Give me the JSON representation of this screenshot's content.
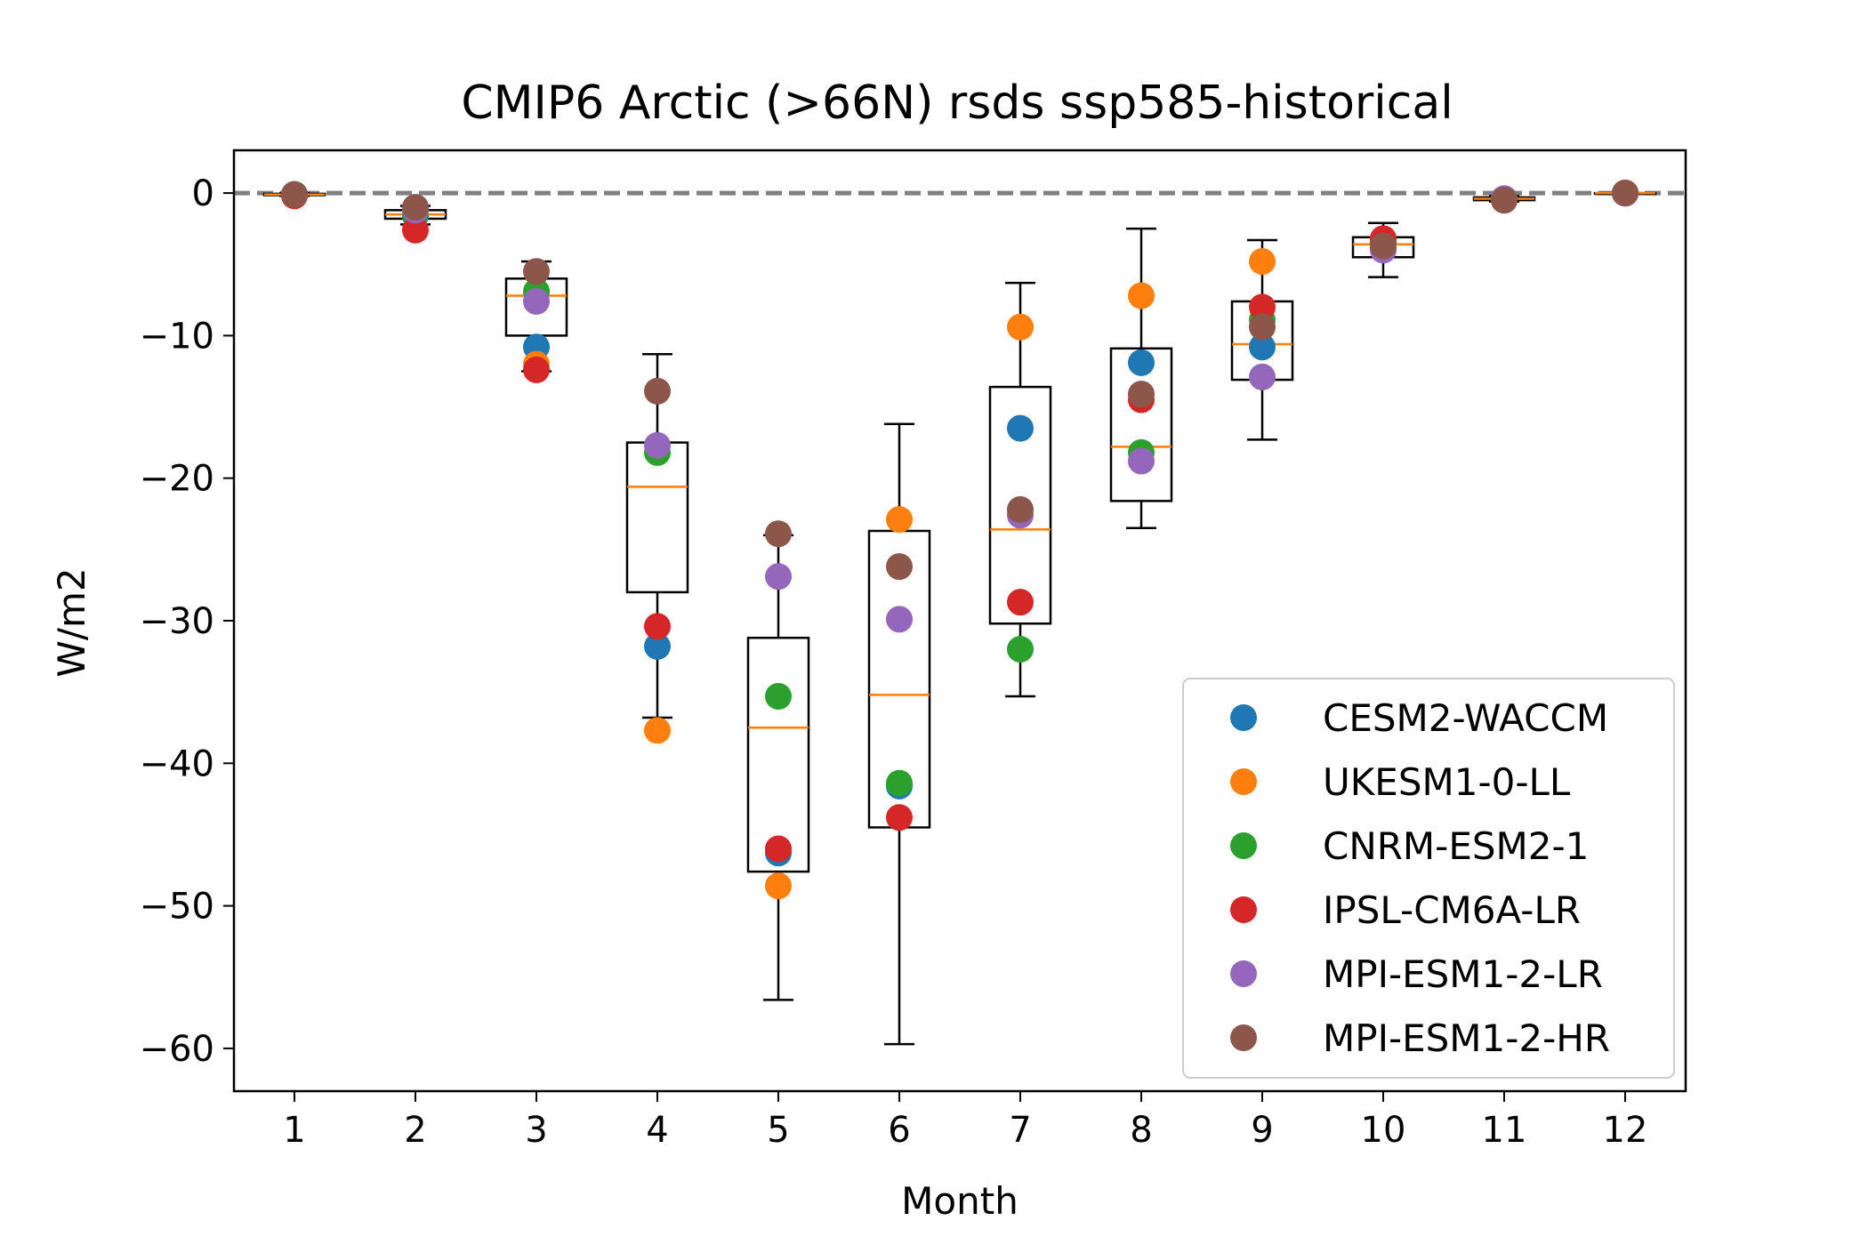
{
  "chart_data": {
    "type": "box+scatter",
    "title": "CMIP6 Arctic (>66N) rsds ssp585-historical",
    "xlabel": "Month",
    "ylabel": "W/m2",
    "xlim": [
      0.5,
      12.5
    ],
    "ylim": [
      -63,
      3
    ],
    "yticks": [
      0,
      -10,
      -20,
      -30,
      -40,
      -50,
      -60
    ],
    "ytick_labels": [
      "0",
      "−10",
      "−20",
      "−30",
      "−40",
      "−50",
      "−60"
    ],
    "categories": [
      "1",
      "2",
      "3",
      "4",
      "5",
      "6",
      "7",
      "8",
      "9",
      "10",
      "11",
      "12"
    ],
    "reference_line": {
      "y": 0,
      "style": "dashed",
      "color": "#808080"
    },
    "legend_position": "lower-right",
    "boxes": [
      {
        "month": 1,
        "whislo": -0.2,
        "q1": -0.15,
        "med": -0.1,
        "q3": -0.05,
        "whishi": 0.0
      },
      {
        "month": 2,
        "whislo": -2.2,
        "q1": -1.8,
        "med": -1.5,
        "q3": -1.2,
        "whishi": -0.9
      },
      {
        "month": 3,
        "whislo": -12.5,
        "q1": -10.0,
        "med": -7.2,
        "q3": -6.0,
        "whishi": -4.8
      },
      {
        "month": 4,
        "whislo": -36.8,
        "q1": -28.0,
        "med": -20.6,
        "q3": -17.5,
        "whishi": -11.3
      },
      {
        "month": 5,
        "whislo": -56.6,
        "q1": -47.6,
        "med": -37.5,
        "q3": -31.2,
        "whishi": -24.0
      },
      {
        "month": 6,
        "whislo": -59.7,
        "q1": -44.5,
        "med": -35.2,
        "q3": -23.7,
        "whishi": -16.2
      },
      {
        "month": 7,
        "whislo": -35.3,
        "q1": -30.2,
        "med": -23.6,
        "q3": -13.6,
        "whishi": -6.3
      },
      {
        "month": 8,
        "whislo": -23.5,
        "q1": -21.6,
        "med": -17.8,
        "q3": -10.9,
        "whishi": -2.5
      },
      {
        "month": 9,
        "whislo": -17.3,
        "q1": -13.1,
        "med": -10.6,
        "q3": -7.6,
        "whishi": -3.3
      },
      {
        "month": 10,
        "whislo": -5.9,
        "q1": -4.5,
        "med": -3.6,
        "q3": -3.1,
        "whishi": -2.1
      },
      {
        "month": 11,
        "whislo": -0.6,
        "q1": -0.5,
        "med": -0.4,
        "q3": -0.3,
        "whishi": -0.2
      },
      {
        "month": 12,
        "whislo": -0.05,
        "q1": -0.03,
        "med": 0.0,
        "q3": 0.0,
        "whishi": 0.0
      }
    ],
    "series": [
      {
        "name": "CESM2-WACCM",
        "color": "#1f77b4",
        "values": [
          -0.1,
          -1.6,
          -10.8,
          -31.8,
          -46.3,
          -41.6,
          -16.5,
          -11.9,
          -10.8,
          -3.6,
          -0.4,
          0.0
        ]
      },
      {
        "name": "UKESM1-0-LL",
        "color": "#ff7f0e",
        "values": [
          -0.1,
          -1.4,
          -12.0,
          -37.7,
          -48.6,
          -22.9,
          -9.4,
          -7.2,
          -4.8,
          -3.8,
          -0.4,
          0.0
        ]
      },
      {
        "name": "CNRM-ESM2-1",
        "color": "#2ca02c",
        "values": [
          -0.1,
          -1.5,
          -6.9,
          -18.2,
          -35.3,
          -41.4,
          -32.0,
          -18.2,
          -8.9,
          -3.4,
          -0.4,
          0.0
        ]
      },
      {
        "name": "IPSL-CM6A-LR",
        "color": "#d62728",
        "values": [
          -0.2,
          -2.6,
          -12.4,
          -30.4,
          -46.0,
          -43.8,
          -28.7,
          -14.5,
          -8.0,
          -3.2,
          -0.5,
          0.0
        ]
      },
      {
        "name": "MPI-ESM1-2-LR",
        "color": "#9467bd",
        "values": [
          -0.1,
          -1.2,
          -7.6,
          -17.7,
          -26.9,
          -29.9,
          -22.6,
          -18.8,
          -12.9,
          -4.0,
          -0.4,
          0.0
        ]
      },
      {
        "name": "MPI-ESM1-2-HR",
        "color": "#8c564b",
        "values": [
          -0.1,
          -1.0,
          -5.5,
          -13.9,
          -23.9,
          -26.2,
          -22.2,
          -14.1,
          -9.4,
          -3.7,
          -0.5,
          0.0
        ]
      }
    ]
  }
}
